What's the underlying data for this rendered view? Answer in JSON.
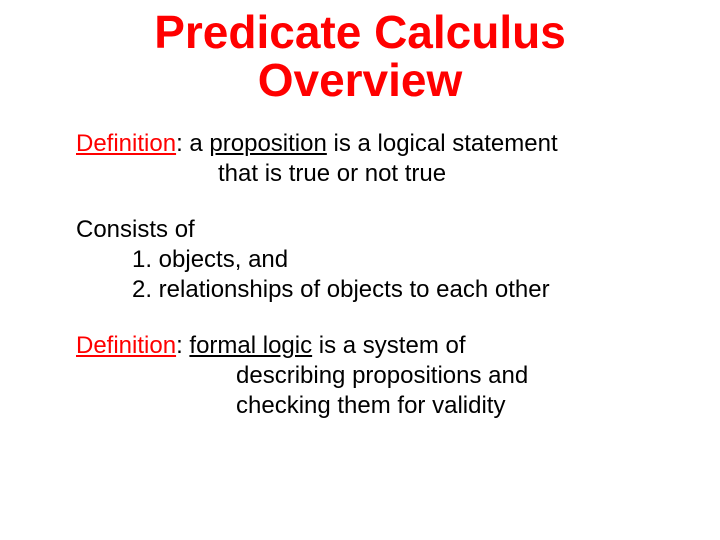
{
  "colors": {
    "title": "#ff0000",
    "definition_label": "#ff0000",
    "body_text": "#000000",
    "background": "#ffffff"
  },
  "typography": {
    "font_family": "Comic Sans MS",
    "title_fontsize": 46,
    "body_fontsize": 24,
    "title_weight": "bold",
    "body_weight": "normal"
  },
  "title": {
    "line1": "Predicate Calculus",
    "line2": "Overview"
  },
  "def1": {
    "label": "Definition",
    "colon_space": ":  a ",
    "term": "proposition",
    "rest_line1": " is a logical statement",
    "rest_line2": "that is true or not true"
  },
  "consists": {
    "heading": "Consists of",
    "item1": "1.  objects, and",
    "item2": "2.  relationships of objects to each other"
  },
  "def2": {
    "label": "Definition",
    "colon_space": ":  ",
    "term": "formal logic",
    "rest_line1": " is a system of",
    "rest_line2": "describing propositions and",
    "rest_line3": "checking them for validity"
  }
}
